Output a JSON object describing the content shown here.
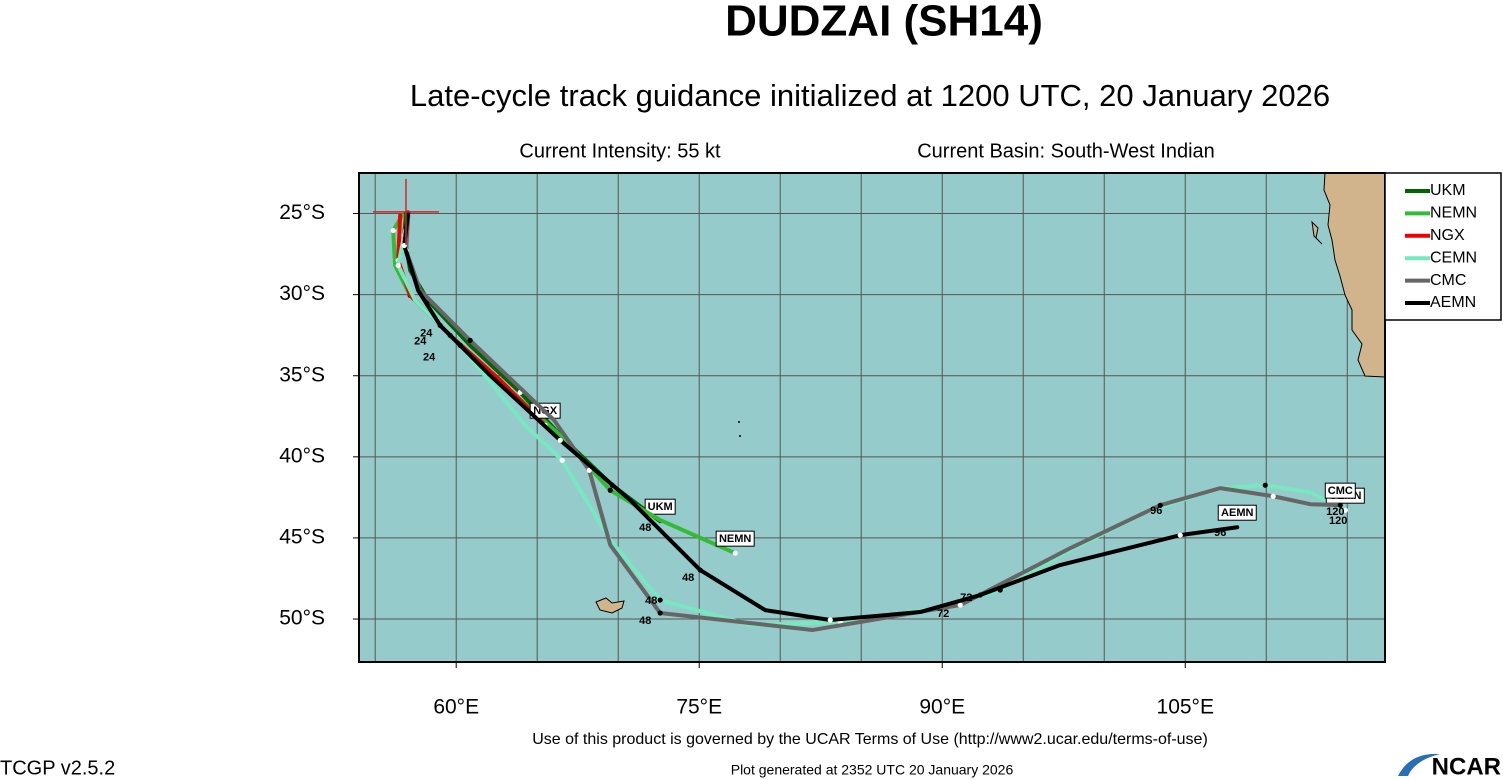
{
  "chart_data": {
    "type": "track-map",
    "title": "DUDZAI (SH14)",
    "subtitle": "Late-cycle track guidance initialized at 1200 UTC, 20 January 2026",
    "intensity": "Current Intensity: 55 kt",
    "basin": "Current Basin: South-West Indian",
    "terms": "Use of this product is governed by the UCAR Terms of Use (http://www2.ucar.edu/terms-of-use)",
    "version": "TCGP v2.5.2",
    "generated": "Plot generated at 2352 UTC   20 January 2026",
    "logo": "NCAR",
    "xlim": [
      54,
      117.33
    ],
    "ylim": [
      -52.65,
      -22.5
    ],
    "xticks": [
      {
        "value": 60,
        "label": "60°E"
      },
      {
        "value": 75,
        "label": "75°E"
      },
      {
        "value": 90,
        "label": "90°E"
      },
      {
        "value": 105,
        "label": "105°E"
      }
    ],
    "yticks": [
      {
        "value": -25,
        "label": "25°S"
      },
      {
        "value": -30,
        "label": "30°S"
      },
      {
        "value": -35,
        "label": "35°S"
      },
      {
        "value": -40,
        "label": "40°S"
      },
      {
        "value": -45,
        "label": "45°S"
      },
      {
        "value": -50,
        "label": "50°S"
      }
    ],
    "xgrid": [
      55,
      60,
      65,
      70,
      75,
      80,
      85,
      90,
      95,
      100,
      105,
      110,
      115
    ],
    "ygrid": [
      -25,
      -30,
      -35,
      -40,
      -45,
      -50
    ],
    "current_position": {
      "lon": 56.9,
      "lat": -24.9,
      "color": "#dd2222"
    },
    "series": [
      {
        "name": "UKM",
        "color": "#006400",
        "x": [
          56.91,
          56.79,
          57.16,
          58.27,
          60.86,
          63.95,
          66.73,
          69.63,
          72.59
        ],
        "values": [
          -24.94,
          -26.35,
          -28.51,
          -30.36,
          -33.13,
          -36.02,
          -38.98,
          -41.75,
          -43.97
        ]
      },
      {
        "name": "NEMN",
        "color": "#33bb33",
        "x": [
          56.67,
          56.11,
          56.23,
          57.16,
          59.94,
          63.33,
          66.42,
          69.51,
          72.59,
          77.22
        ],
        "values": [
          -25.12,
          -26.05,
          -28.2,
          -30.05,
          -32.82,
          -35.9,
          -38.67,
          -42.06,
          -43.9,
          -45.94
        ]
      },
      {
        "name": "NGX",
        "color": "#ee0000",
        "x": [
          56.54,
          56.42,
          57.16,
          59.63,
          62.72,
          65.49
        ],
        "values": [
          -25.12,
          -27.89,
          -30.05,
          -32.51,
          -35.28,
          -38.05
        ]
      },
      {
        "name": "CEMN",
        "color": "#77e8c0",
        "x": [
          56.85,
          56.42,
          57.47,
          60.25,
          64.26,
          66.54,
          69.51,
          72.59,
          78.15,
          83.7,
          89.88,
          93.58,
          97.9,
          102.84,
          107.16,
          109.94,
          112.72,
          114.88
        ],
        "values": [
          -26.05,
          -28.2,
          -30.36,
          -33.13,
          -38.05,
          -40.21,
          -45.14,
          -48.83,
          -50.37,
          -50.18,
          -49.32,
          -48.21,
          -45.75,
          -43.29,
          -41.93,
          -41.75,
          -42.18,
          -43.29
        ]
      },
      {
        "name": "CMC",
        "color": "#666666",
        "x": [
          57.04,
          56.91,
          57.78,
          60.86,
          66.05,
          68.21,
          69.51,
          72.59,
          81.98,
          91.11,
          97.9,
          103.46,
          107.16,
          110.43,
          112.72,
          114.57
        ],
        "values": [
          -25.12,
          -27.28,
          -29.74,
          -32.82,
          -37.75,
          -40.83,
          -45.44,
          -49.63,
          -50.68,
          -49.14,
          -45.63,
          -42.98,
          -41.93,
          -42.43,
          -42.92,
          -42.98
        ]
      },
      {
        "name": "AEMN",
        "color": "#000000",
        "x": [
          57.04,
          56.79,
          57.65,
          59.01,
          62.1,
          66.42,
          70.74,
          75.06,
          79.07,
          83.09,
          88.64,
          92.35,
          97.28,
          104.69,
          108.21
        ],
        "values": [
          -24.94,
          -26.97,
          -29.74,
          -31.9,
          -34.98,
          -38.98,
          -42.67,
          -46.98,
          -49.45,
          -50.06,
          -49.57,
          -48.52,
          -46.67,
          -44.83,
          -44.34
        ]
      }
    ],
    "hour_labels": [
      {
        "text": "24",
        "lon": 58.15,
        "lat": -32.39
      },
      {
        "text": "24",
        "lon": 57.78,
        "lat": -32.88
      },
      {
        "text": "24",
        "lon": 58.33,
        "lat": -33.87
      },
      {
        "text": "48",
        "lon": 71.67,
        "lat": -44.4
      },
      {
        "text": "48",
        "lon": 74.32,
        "lat": -47.48
      },
      {
        "text": "48",
        "lon": 72.04,
        "lat": -48.89
      },
      {
        "text": "48",
        "lon": 71.67,
        "lat": -50.12
      },
      {
        "text": "72",
        "lon": 90.06,
        "lat": -49.69
      },
      {
        "text": "72",
        "lon": 91.48,
        "lat": -48.71
      },
      {
        "text": "96",
        "lon": 103.21,
        "lat": -43.35
      },
      {
        "text": "96",
        "lon": 107.16,
        "lat": -44.7
      },
      {
        "text": "120",
        "lon": 114.26,
        "lat": -43.41
      },
      {
        "text": "120",
        "lon": 114.44,
        "lat": -43.97
      }
    ]
  }
}
